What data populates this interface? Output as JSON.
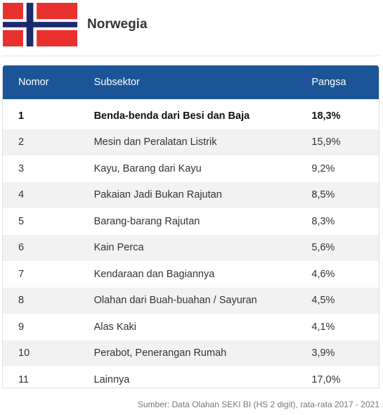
{
  "header": {
    "country": "Norwegia",
    "flag_icon": "norway-flag-icon",
    "flag_colors": {
      "red": "#e8312e",
      "white": "#ffffff",
      "blue": "#1b2a6b"
    }
  },
  "table": {
    "header_color": "#1b5497",
    "columns": [
      "Nomor",
      "Subsektor",
      "Pangsa"
    ],
    "rows": [
      {
        "no": "1",
        "subsektor": "Benda-benda dari Besi dan Baja",
        "pangsa": "18,3%"
      },
      {
        "no": "2",
        "subsektor": "Mesin dan Peralatan Listrik",
        "pangsa": "15,9%"
      },
      {
        "no": "3",
        "subsektor": "Kayu, Barang dari Kayu",
        "pangsa": "9,2%"
      },
      {
        "no": "4",
        "subsektor": "Pakaian Jadi Bukan Rajutan",
        "pangsa": "8,5%"
      },
      {
        "no": "5",
        "subsektor": "Barang-barang Rajutan",
        "pangsa": "8,3%"
      },
      {
        "no": "6",
        "subsektor": "Kain Perca",
        "pangsa": "5,6%"
      },
      {
        "no": "7",
        "subsektor": "Kendaraan dan Bagiannya",
        "pangsa": "4,6%"
      },
      {
        "no": "8",
        "subsektor": "Olahan dari Buah-buahan / Sayuran",
        "pangsa": "4,5%"
      },
      {
        "no": "9",
        "subsektor": "Alas Kaki",
        "pangsa": "4,1%"
      },
      {
        "no": "10",
        "subsektor": "Perabot, Penerangan Rumah",
        "pangsa": "3,9%"
      },
      {
        "no": "11",
        "subsektor": "Lainnya",
        "pangsa": "17,0%"
      }
    ]
  },
  "footer": {
    "source_label": "Sumber",
    "source_text": ": Data Olahan SEKI BI (HS 2 digit), rata-rata 2017 - 2021"
  }
}
